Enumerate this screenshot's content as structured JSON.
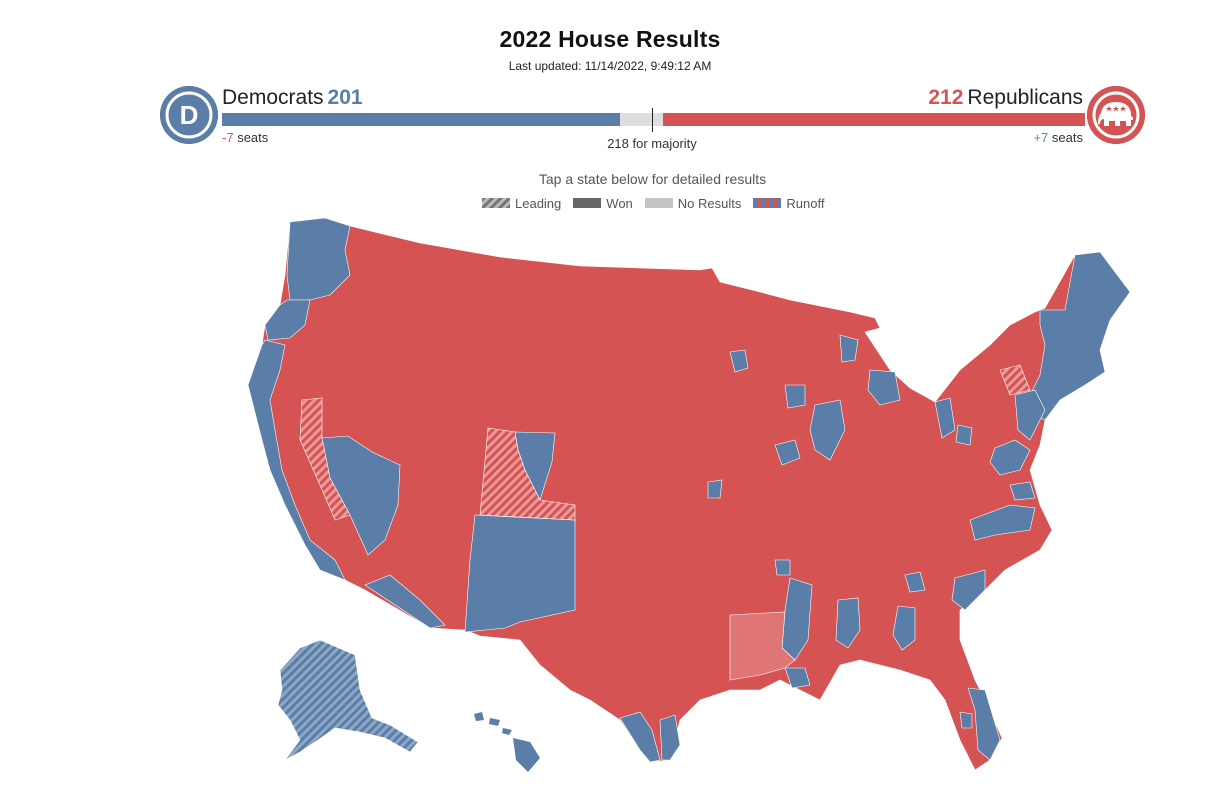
{
  "header": {
    "title": "2022 House Results",
    "updated_label": "Last updated:",
    "updated_value": "11/14/2022, 9:49:12 AM"
  },
  "democrats": {
    "name": "Democrats",
    "seats": "201",
    "change_value": "-7",
    "change_unit": "seats",
    "color": "#5a7ea8",
    "badge_letter": "D"
  },
  "republicans": {
    "name": "Republicans",
    "seats": "212",
    "change_value": "+7",
    "change_unit": "seats",
    "color": "#d65353"
  },
  "majority": {
    "label": "218 for majority"
  },
  "map": {
    "instruction": "Tap a state below for detailed results",
    "legend": {
      "leading": "Leading",
      "won": "Won",
      "no_results": "No Results",
      "runoff": "Runoff"
    },
    "dem_color": "#5a7ea8",
    "rep_color": "#d65353"
  }
}
